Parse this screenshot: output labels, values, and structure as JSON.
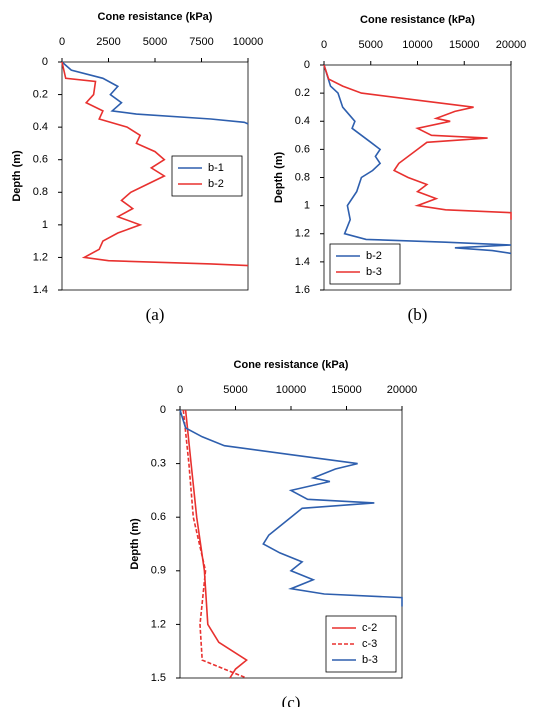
{
  "chart_data": [
    {
      "type": "line",
      "x_label": "Cone resistance (kPa)",
      "y_label": "Depth (m)",
      "caption": "(a)",
      "xlim": [
        0,
        10000
      ],
      "xticks": [
        0,
        2500,
        5000,
        7500,
        10000
      ],
      "ylim": [
        0,
        1.4
      ],
      "yticks": [
        0,
        0.2,
        0.4,
        0.6,
        0.8,
        1,
        1.2,
        1.4
      ],
      "y_inverted": true,
      "x_axis_position": "top",
      "legend": "right",
      "series": [
        {
          "name": "b-1",
          "color": "#2e5fae",
          "dashed": false,
          "x": [
            0,
            500,
            2200,
            3000,
            2600,
            3200,
            2700,
            4000,
            8000,
            9800,
            10000
          ],
          "y": [
            0,
            0.05,
            0.1,
            0.15,
            0.2,
            0.25,
            0.3,
            0.32,
            0.35,
            0.37,
            0.38
          ]
        },
        {
          "name": "b-2",
          "color": "#e8312f",
          "dashed": false,
          "x": [
            0,
            200,
            1800,
            1700,
            1300,
            2200,
            2000,
            3500,
            4200,
            4000,
            5000,
            5500,
            4800,
            5500,
            4600,
            3700,
            3200,
            3800,
            3000,
            4200,
            3000,
            2200,
            2000,
            1200,
            2500,
            8000,
            10000
          ],
          "y": [
            0,
            0.1,
            0.12,
            0.2,
            0.25,
            0.3,
            0.35,
            0.4,
            0.45,
            0.5,
            0.55,
            0.6,
            0.65,
            0.7,
            0.75,
            0.8,
            0.85,
            0.9,
            0.95,
            1.0,
            1.05,
            1.1,
            1.15,
            1.2,
            1.22,
            1.24,
            1.25
          ]
        }
      ]
    },
    {
      "type": "line",
      "x_label": "Cone resistance (kPa)",
      "y_label": "Depth (m)",
      "caption": "(b)",
      "xlim": [
        0,
        20000
      ],
      "xticks": [
        0,
        5000,
        10000,
        15000,
        20000
      ],
      "ylim": [
        0,
        1.6
      ],
      "yticks": [
        0,
        0.2,
        0.4,
        0.6,
        0.8,
        1,
        1.2,
        1.4,
        1.6
      ],
      "y_inverted": true,
      "x_axis_position": "top",
      "legend": "lower left",
      "series": [
        {
          "name": "b-2",
          "color": "#2e5fae",
          "dashed": false,
          "x": [
            0,
            700,
            1500,
            2000,
            3300,
            3000,
            5000,
            6000,
            5500,
            6000,
            5200,
            4000,
            3500,
            2500,
            2800,
            2200,
            4500,
            13000,
            20000,
            14000,
            18000,
            20000
          ],
          "y": [
            0,
            0.15,
            0.2,
            0.3,
            0.4,
            0.45,
            0.55,
            0.6,
            0.65,
            0.7,
            0.75,
            0.8,
            0.9,
            1.0,
            1.1,
            1.2,
            1.24,
            1.26,
            1.28,
            1.3,
            1.32,
            1.34
          ]
        },
        {
          "name": "b-3",
          "color": "#e8312f",
          "dashed": false,
          "x": [
            0,
            500,
            2000,
            4000,
            10000,
            16000,
            14000,
            12000,
            13500,
            10000,
            11500,
            17500,
            11000,
            10000,
            8000,
            7500,
            9000,
            11000,
            10000,
            12000,
            10000,
            13000,
            20000,
            20000
          ],
          "y": [
            0,
            0.1,
            0.15,
            0.2,
            0.25,
            0.3,
            0.33,
            0.38,
            0.4,
            0.45,
            0.5,
            0.52,
            0.55,
            0.6,
            0.7,
            0.75,
            0.8,
            0.85,
            0.9,
            0.95,
            1.0,
            1.03,
            1.05,
            1.1
          ]
        }
      ]
    },
    {
      "type": "line",
      "x_label": "Cone resistance (kPa)",
      "y_label": "Depth (m)",
      "caption": "(c)",
      "xlim": [
        0,
        20000
      ],
      "xticks": [
        0,
        5000,
        10000,
        15000,
        20000
      ],
      "ylim": [
        0,
        1.5
      ],
      "yticks": [
        0,
        0.3,
        0.6,
        0.9,
        1.2,
        1.5
      ],
      "y_inverted": true,
      "x_axis_position": "top",
      "legend": "lower right",
      "series": [
        {
          "name": "c-2",
          "color": "#e8312f",
          "dashed": false,
          "x": [
            500,
            1000,
            1500,
            2200,
            2500,
            3500,
            6000,
            5000,
            4500
          ],
          "y": [
            0,
            0.3,
            0.6,
            0.9,
            1.2,
            1.3,
            1.4,
            1.45,
            1.5
          ]
        },
        {
          "name": "c-3",
          "color": "#e8312f",
          "dashed": true,
          "x": [
            300,
            800,
            1200,
            2300,
            1800,
            2000,
            4000,
            6000
          ],
          "y": [
            0,
            0.3,
            0.6,
            0.9,
            1.2,
            1.4,
            1.45,
            1.5
          ]
        },
        {
          "name": "b-3",
          "color": "#2e5fae",
          "dashed": false,
          "x": [
            0,
            500,
            2000,
            4000,
            10000,
            16000,
            14000,
            12000,
            13500,
            10000,
            11500,
            17500,
            11000,
            10000,
            8000,
            7500,
            9000,
            11000,
            10000,
            12000,
            10000,
            13000,
            20000,
            20000
          ],
          "y": [
            0,
            0.1,
            0.15,
            0.2,
            0.25,
            0.3,
            0.33,
            0.38,
            0.4,
            0.45,
            0.5,
            0.52,
            0.55,
            0.6,
            0.7,
            0.75,
            0.8,
            0.85,
            0.9,
            0.95,
            1.0,
            1.03,
            1.05,
            1.1
          ]
        }
      ]
    }
  ]
}
